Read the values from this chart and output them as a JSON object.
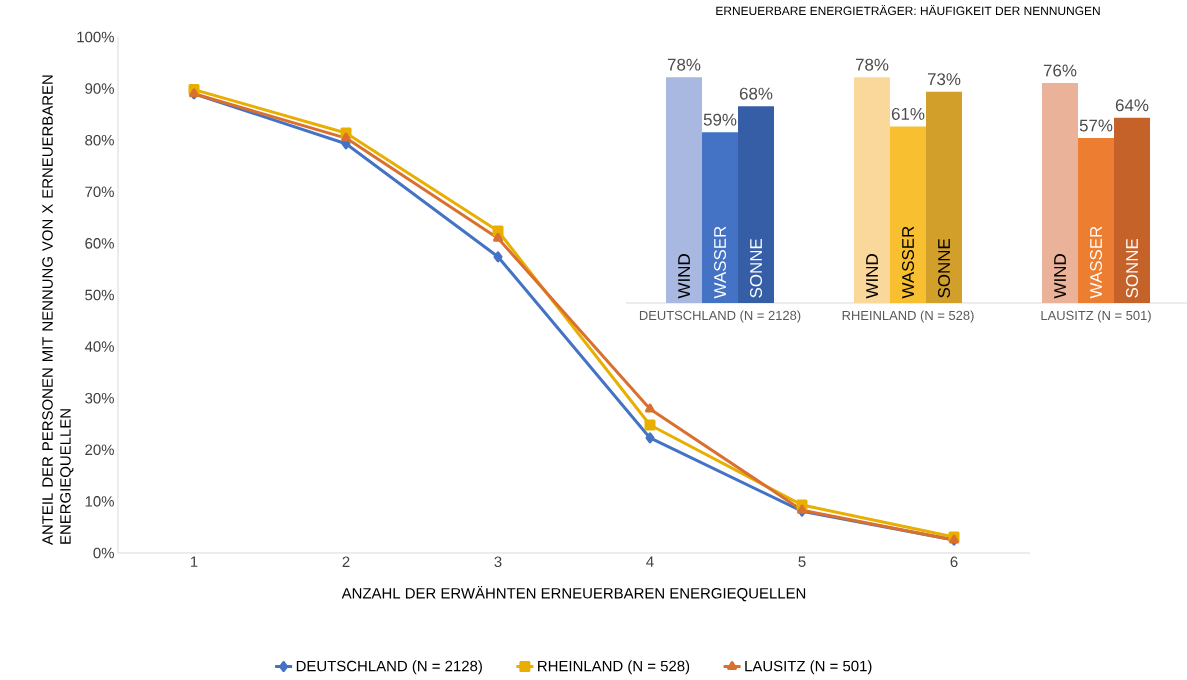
{
  "chart_data": [
    {
      "type": "line",
      "xlabel": "ANZAHL DER ERWÄHNTEN ERNEUERBAREN ENERGIEQUELLEN",
      "ylabel": "ANTEIL DER PERSONEN MIT NENNUNG VON X ERNEUERBAREN ENERGIEQUELLEN",
      "categories": [
        "1",
        "2",
        "3",
        "4",
        "5",
        "6"
      ],
      "ylim": [
        0,
        100
      ],
      "yticks": [
        {
          "value": 0,
          "label": "0%"
        },
        {
          "value": 10,
          "label": "10%"
        },
        {
          "value": 20,
          "label": "20%"
        },
        {
          "value": 30,
          "label": "30%"
        },
        {
          "value": 40,
          "label": "40%"
        },
        {
          "value": 50,
          "label": "50%"
        },
        {
          "value": 60,
          "label": "60%"
        },
        {
          "value": 70,
          "label": "70%"
        },
        {
          "value": 80,
          "label": "80%"
        },
        {
          "value": 90,
          "label": "90%"
        },
        {
          "value": 100,
          "label": "100%"
        }
      ],
      "legend": "bottom",
      "grid": false,
      "series": [
        {
          "name": "DEUTSCHLAND (N = 2128)",
          "color": "#4472c4",
          "marker": "diamond",
          "values": [
            89,
            79.3,
            57.4,
            22.3,
            8.1,
            2.5
          ]
        },
        {
          "name": "RHEINLAND (N = 528)",
          "color": "#e8ae00",
          "marker": "square",
          "values": [
            89.8,
            81.4,
            62.4,
            24.8,
            9.3,
            3.1
          ]
        },
        {
          "name": "LAUSITZ (N = 501)",
          "color": "#d9702f",
          "marker": "triangle",
          "values": [
            89,
            80.4,
            61,
            27.9,
            8.3,
            2.5
          ]
        }
      ]
    },
    {
      "type": "bar",
      "title": "ERNEUERBARE ENERGIETRÄGER: HÄUFIGKEIT DER NENNUNGEN",
      "categories": [
        "DEUTSCHLAND (N = 2128)",
        "RHEINLAND (N = 528)",
        "LAUSITZ (N = 501)"
      ],
      "series": [
        {
          "name": "WIND",
          "colors": [
            "#a9b8e0",
            "#fad79b",
            "#ebb29a"
          ],
          "values": [
            78,
            78,
            76
          ],
          "value_labels": [
            "78%",
            "78%",
            "76%"
          ]
        },
        {
          "name": "WASSER",
          "colors": [
            "#4472c4",
            "#f8bf30",
            "#ed7d31"
          ],
          "values": [
            59,
            61,
            57
          ],
          "value_labels": [
            "59%",
            "61%",
            "57%"
          ]
        },
        {
          "name": "SONNE",
          "colors": [
            "#365ea6",
            "#d29f2a",
            "#c4622a"
          ],
          "values": [
            68,
            73,
            64
          ],
          "value_labels": [
            "68%",
            "73%",
            "64%"
          ]
        }
      ]
    }
  ]
}
